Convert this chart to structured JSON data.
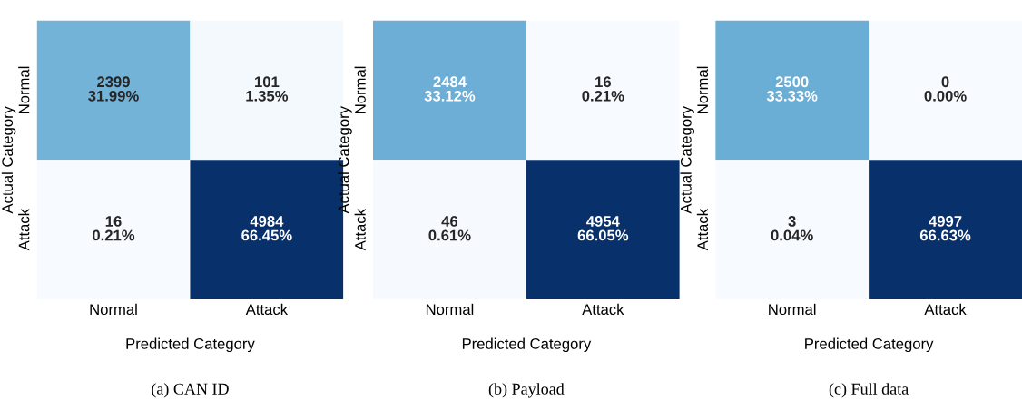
{
  "chart_data": [
    {
      "type": "heatmap",
      "title": "(a) CAN ID",
      "xlabel": "Predicted Category",
      "ylabel": "Actual Category",
      "categories": [
        "Normal",
        "Attack"
      ],
      "y_categories": [
        "Normal",
        "Attack"
      ],
      "cells": [
        [
          2399,
          101
        ],
        [
          16,
          4984
        ]
      ],
      "data_labels": true,
      "annotations": [
        "31.99%",
        "1.35%",
        "0.21%",
        "66.45%"
      ]
    },
    {
      "type": "heatmap",
      "title": "(b) Payload",
      "xlabel": "Predicted Category",
      "ylabel": "Actual Category",
      "categories": [
        "Normal",
        "Attack"
      ],
      "y_categories": [
        "Normal",
        "Attack"
      ],
      "cells": [
        [
          2484,
          16
        ],
        [
          46,
          4954
        ]
      ],
      "data_labels": true,
      "annotations": [
        "33.12%",
        "0.21%",
        "0.61%",
        "66.05%"
      ]
    },
    {
      "type": "heatmap",
      "title": "(c) Full data",
      "xlabel": "Predicted Category",
      "ylabel": "Actual Category",
      "categories": [
        "Normal",
        "Attack"
      ],
      "y_categories": [
        "Normal",
        "Attack"
      ],
      "cells": [
        [
          2500,
          0
        ],
        [
          3,
          4997
        ]
      ],
      "data_labels": true,
      "annotations": [
        "33.33%",
        "0.00%",
        "0.04%",
        "66.63%"
      ]
    }
  ]
}
